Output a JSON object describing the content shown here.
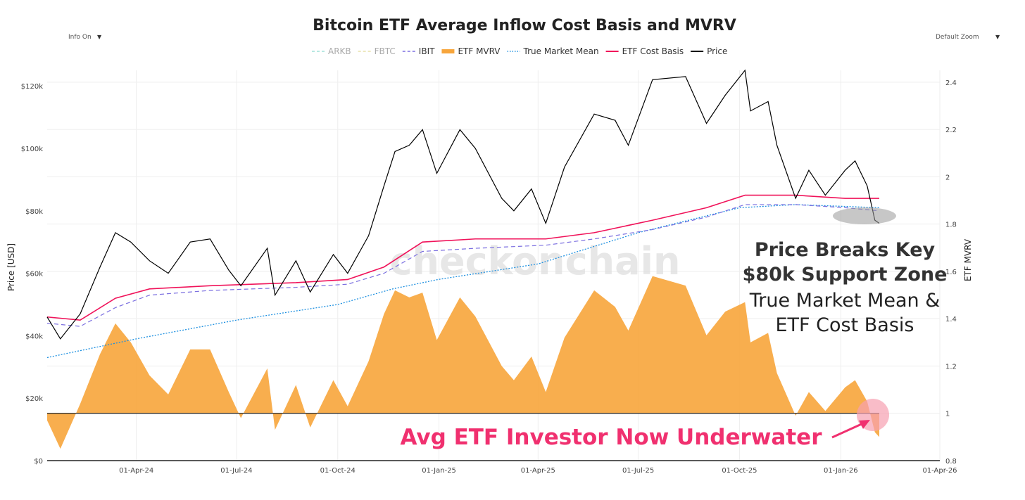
{
  "controls": {
    "info_label": "Info On",
    "zoom_label": "Default Zoom",
    "dropdown_icon": "triangle-down-icon"
  },
  "watermark": "checkonchain",
  "annotations": {
    "headline_1": "Price Breaks Key",
    "headline_2": "$80k Support Zone",
    "sub_1": "True Market Mean &",
    "sub_2": "ETF Cost Basis",
    "underwater": "Avg ETF Investor Now Underwater",
    "colors": {
      "underwater": "#f0306f",
      "headline": "#333333"
    }
  },
  "chart_data": {
    "type": "line",
    "title": "Bitcoin ETF Average Inflow Cost Basis and MVRV",
    "ylabel": "Price [USD]",
    "y2label": "ETF MVRV",
    "ylim": [
      0,
      125000
    ],
    "y2lim": [
      0.8,
      2.45
    ],
    "xlim": [
      "2024-01-11",
      "2026-04-01"
    ],
    "grid": true,
    "legend_position": "top",
    "x_ticks": [
      "01-Apr-24",
      "01-Jul-24",
      "01-Oct-24",
      "01-Jan-25",
      "01-Apr-25",
      "01-Jul-25",
      "01-Oct-25",
      "01-Jan-26",
      "01-Apr-26"
    ],
    "x_tick_dates": [
      "2024-04-01",
      "2024-07-01",
      "2024-10-01",
      "2025-01-01",
      "2025-04-01",
      "2025-07-01",
      "2025-10-01",
      "2026-01-01",
      "2026-04-01"
    ],
    "y_ticks": [
      "$0",
      "$20k",
      "$40k",
      "$60k",
      "$80k",
      "$100k",
      "$120k"
    ],
    "y_tick_values": [
      0,
      20000,
      40000,
      60000,
      80000,
      100000,
      120000
    ],
    "y2_ticks": [
      "0.8",
      "1",
      "1.2",
      "1.4",
      "1.6",
      "1.8",
      "2",
      "2.2",
      "2.4"
    ],
    "y2_tick_values": [
      0.8,
      1,
      1.2,
      1.4,
      1.6,
      1.8,
      2,
      2.2,
      2.4
    ],
    "legend": [
      {
        "name": "ARKB",
        "color": "#9fe0d8",
        "style": "dash",
        "hidden": true
      },
      {
        "name": "FBTC",
        "color": "#e8e0a8",
        "style": "dash",
        "hidden": true
      },
      {
        "name": "IBIT",
        "color": "#7b6fe0",
        "style": "dash",
        "hidden": false
      },
      {
        "name": "ETF MVRV",
        "color": "#f7a53b",
        "style": "area",
        "hidden": false
      },
      {
        "name": "True Market Mean",
        "color": "#1e90e0",
        "style": "dot",
        "hidden": false
      },
      {
        "name": "ETF Cost Basis",
        "color": "#f0135a",
        "style": "solid",
        "hidden": false
      },
      {
        "name": "Price",
        "color": "#000000",
        "style": "solid",
        "hidden": false
      }
    ],
    "series": [
      {
        "name": "Price",
        "axis": "left",
        "x": [
          "2024-01-11",
          "2024-01-23",
          "2024-02-10",
          "2024-02-28",
          "2024-03-13",
          "2024-03-27",
          "2024-04-13",
          "2024-04-30",
          "2024-05-20",
          "2024-06-07",
          "2024-06-24",
          "2024-07-05",
          "2024-07-29",
          "2024-08-05",
          "2024-08-24",
          "2024-09-06",
          "2024-09-27",
          "2024-10-10",
          "2024-10-29",
          "2024-11-12",
          "2024-11-22",
          "2024-12-05",
          "2024-12-17",
          "2024-12-30",
          "2025-01-20",
          "2025-02-03",
          "2025-02-27",
          "2025-03-10",
          "2025-03-26",
          "2025-04-08",
          "2025-04-25",
          "2025-05-22",
          "2025-06-10",
          "2025-06-22",
          "2025-07-14",
          "2025-08-13",
          "2025-09-01",
          "2025-09-18",
          "2025-10-06",
          "2025-10-11",
          "2025-10-27",
          "2025-11-04",
          "2025-11-21",
          "2025-12-03",
          "2025-12-18",
          "2026-01-05",
          "2026-01-14",
          "2026-01-25",
          "2026-02-01",
          "2026-02-05"
        ],
        "y": [
          46000,
          39000,
          47000,
          62000,
          73000,
          70000,
          64000,
          60000,
          70000,
          71000,
          61000,
          56000,
          68000,
          53000,
          64000,
          54000,
          66000,
          60000,
          72000,
          88000,
          99000,
          101000,
          106000,
          92000,
          106000,
          100000,
          84000,
          80000,
          87000,
          76000,
          94000,
          111000,
          109000,
          101000,
          122000,
          123000,
          108000,
          117000,
          125000,
          112000,
          115000,
          101000,
          84000,
          93000,
          85000,
          93000,
          96000,
          88000,
          77000,
          76000
        ]
      },
      {
        "name": "ETF MVRV",
        "axis": "right",
        "x": [
          "2024-01-11",
          "2024-01-23",
          "2024-02-10",
          "2024-02-28",
          "2024-03-13",
          "2024-03-27",
          "2024-04-13",
          "2024-04-30",
          "2024-05-20",
          "2024-06-07",
          "2024-06-24",
          "2024-07-05",
          "2024-07-29",
          "2024-08-05",
          "2024-08-24",
          "2024-09-06",
          "2024-09-27",
          "2024-10-10",
          "2024-10-29",
          "2024-11-12",
          "2024-11-22",
          "2024-12-05",
          "2024-12-17",
          "2024-12-30",
          "2025-01-20",
          "2025-02-03",
          "2025-02-27",
          "2025-03-10",
          "2025-03-26",
          "2025-04-08",
          "2025-04-25",
          "2025-05-22",
          "2025-06-10",
          "2025-06-22",
          "2025-07-14",
          "2025-08-13",
          "2025-09-01",
          "2025-09-18",
          "2025-10-06",
          "2025-10-11",
          "2025-10-27",
          "2025-11-04",
          "2025-11-21",
          "2025-12-03",
          "2025-12-18",
          "2026-01-05",
          "2026-01-14",
          "2026-01-25",
          "2026-02-01",
          "2026-02-05"
        ],
        "y": [
          0.97,
          0.85,
          1.04,
          1.25,
          1.38,
          1.3,
          1.16,
          1.08,
          1.27,
          1.27,
          1.09,
          0.98,
          1.19,
          0.93,
          1.12,
          0.94,
          1.14,
          1.03,
          1.22,
          1.42,
          1.52,
          1.49,
          1.51,
          1.31,
          1.49,
          1.41,
          1.2,
          1.14,
          1.24,
          1.09,
          1.32,
          1.52,
          1.45,
          1.35,
          1.58,
          1.54,
          1.33,
          1.43,
          1.47,
          1.3,
          1.34,
          1.17,
          0.99,
          1.09,
          1.01,
          1.11,
          1.14,
          1.05,
          0.92,
          0.9
        ]
      },
      {
        "name": "ETF Cost Basis",
        "axis": "left",
        "x": [
          "2024-01-11",
          "2024-02-10",
          "2024-03-13",
          "2024-04-13",
          "2024-06-07",
          "2024-08-24",
          "2024-10-10",
          "2024-11-12",
          "2024-12-17",
          "2025-02-03",
          "2025-04-08",
          "2025-05-22",
          "2025-07-14",
          "2025-09-01",
          "2025-10-06",
          "2025-11-21",
          "2026-01-05",
          "2026-02-05"
        ],
        "y": [
          46000,
          45000,
          52000,
          55000,
          56000,
          57000,
          58000,
          62000,
          70000,
          71000,
          71000,
          73000,
          77000,
          81000,
          85000,
          85000,
          84000,
          84000
        ]
      },
      {
        "name": "IBIT",
        "axis": "left",
        "x": [
          "2024-01-11",
          "2024-02-10",
          "2024-03-13",
          "2024-04-13",
          "2024-06-07",
          "2024-08-24",
          "2024-10-10",
          "2024-11-12",
          "2024-12-17",
          "2025-02-03",
          "2025-04-08",
          "2025-05-22",
          "2025-07-14",
          "2025-09-01",
          "2025-10-06",
          "2025-11-21",
          "2026-01-05",
          "2026-02-05"
        ],
        "y": [
          44000,
          43000,
          49000,
          53000,
          54500,
          55500,
          56500,
          60000,
          67000,
          68000,
          69000,
          71000,
          74000,
          78000,
          82000,
          82000,
          81000,
          80000
        ]
      },
      {
        "name": "True Market Mean",
        "axis": "left",
        "x": [
          "2024-01-11",
          "2024-04-01",
          "2024-07-01",
          "2024-10-01",
          "2024-11-20",
          "2024-12-31",
          "2025-04-01",
          "2025-07-01",
          "2025-10-01",
          "2025-11-21",
          "2026-02-05"
        ],
        "y": [
          33000,
          39000,
          45000,
          50000,
          55000,
          58000,
          63000,
          73000,
          81000,
          82000,
          81000
        ]
      }
    ]
  }
}
